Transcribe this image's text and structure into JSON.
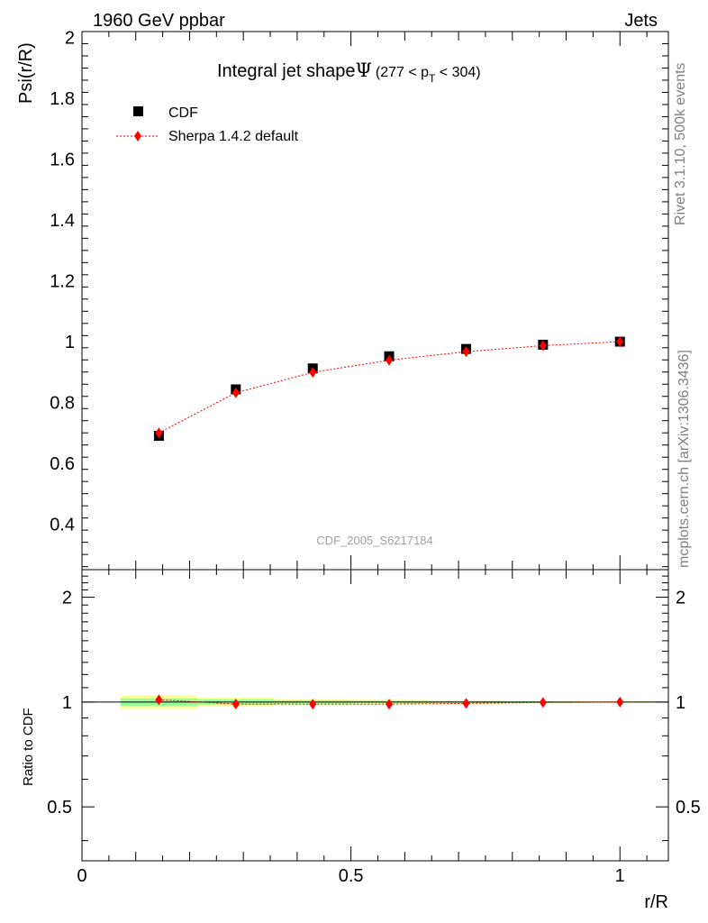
{
  "header": {
    "left": "1960 GeV ppbar",
    "right": "Jets"
  },
  "side": {
    "rivet": "Rivet 3.1.10,  500k events",
    "mcplots": "mcplots.cern.ch [arXiv:1306.3436]"
  },
  "colors": {
    "mc": "#ff0000",
    "data": "#000000",
    "band_outer": "#ffff99",
    "band_inner": "#99ff99"
  },
  "chart_data": [
    {
      "type": "scatter",
      "title_main": "Integral jet shape",
      "title_symbol": "Ψ",
      "title_range_prefix": "(277 < p",
      "title_range_sub": "T",
      "title_range_suffix": " < 304)",
      "ylabel": "Psi(r/R)",
      "watermark": "CDF_2005_S6217184",
      "xlim": [
        0,
        1.09
      ],
      "ylim": [
        0.25,
        2.02
      ],
      "y_ticks": [
        0.4,
        0.6,
        0.8,
        1,
        1.2,
        1.4,
        1.6,
        1.8,
        2
      ],
      "y_tick_labels": [
        "0.4",
        "0.6",
        "0.8",
        "1",
        "1.2",
        "1.4",
        "1.6",
        "1.8",
        "2"
      ],
      "legend_position": "top-left",
      "series": [
        {
          "name": "CDF",
          "marker": "square",
          "x": [
            0.143,
            0.286,
            0.429,
            0.571,
            0.714,
            0.857,
            1.0
          ],
          "y": [
            0.69,
            0.843,
            0.912,
            0.952,
            0.976,
            0.99,
            1.0
          ]
        },
        {
          "name": "Sherpa 1.4.2 default",
          "marker": "diamond",
          "x": [
            0.143,
            0.286,
            0.429,
            0.571,
            0.714,
            0.857,
            1.0
          ],
          "y": [
            0.7,
            0.832,
            0.899,
            0.939,
            0.967,
            0.987,
            1.0
          ]
        }
      ]
    },
    {
      "type": "scatter",
      "ylabel": "Ratio to CDF",
      "xlabel": "r/R",
      "xlim": [
        0,
        1.09
      ],
      "ylim": [
        0.35,
        2.4
      ],
      "y_scale": "log",
      "y_ticks": [
        0.5,
        1,
        2
      ],
      "y_tick_labels": [
        "0.5",
        "1",
        "2"
      ],
      "x_ticks": [
        0,
        0.5,
        1
      ],
      "x_tick_labels": [
        "0",
        "0.5",
        "1"
      ],
      "reference_line": 1,
      "band": {
        "x_edges": [
          0.0715,
          0.2145,
          0.3575,
          0.5,
          0.643,
          0.7855,
          0.9285,
          1.07
        ],
        "outer_half": [
          0.045,
          0.03,
          0.02,
          0.015,
          0.012,
          0.008,
          0.005
        ],
        "inner_half": [
          0.025,
          0.018,
          0.012,
          0.009,
          0.007,
          0.005,
          0.003
        ]
      },
      "series": [
        {
          "name": "Sherpa 1.4.2 default",
          "marker": "diamond",
          "x": [
            0.143,
            0.286,
            0.429,
            0.571,
            0.714,
            0.857,
            1.0
          ],
          "y": [
            1.015,
            0.987,
            0.986,
            0.986,
            0.991,
            0.997,
            1.0
          ]
        }
      ]
    }
  ]
}
